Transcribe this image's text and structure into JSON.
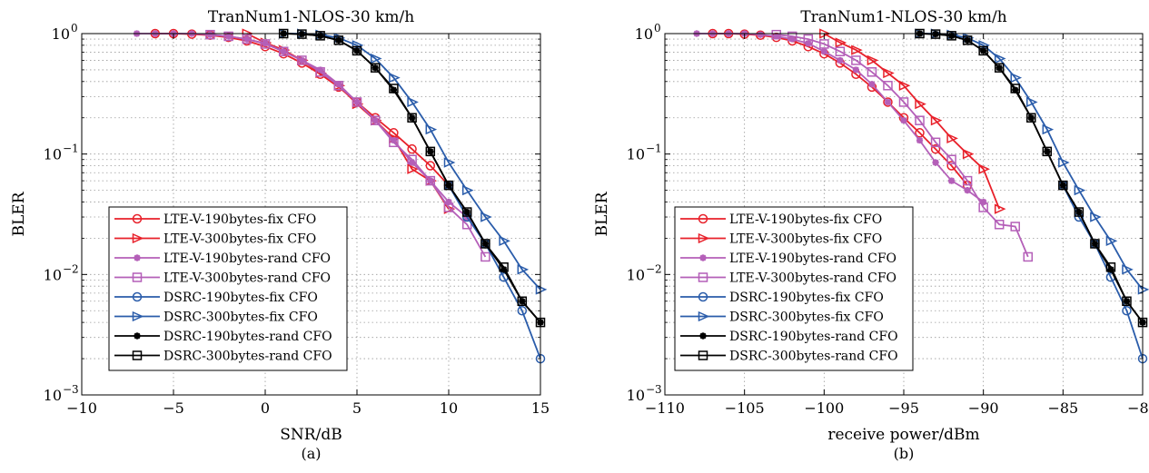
{
  "chart_data": [
    {
      "type": "line",
      "title": "TranNum1-NLOS-30 km/h",
      "caption": "(a)",
      "xlabel": "SNR/dB",
      "ylabel": "BLER",
      "yscale": "log",
      "xlim": [
        -10,
        15
      ],
      "ylim": [
        0.001,
        1
      ],
      "grid": true,
      "legend_position": "lower-left",
      "x_ticks": [
        {
          "value": -10,
          "label": "−10"
        },
        {
          "value": -5,
          "label": "−5"
        },
        {
          "value": 0,
          "label": "0"
        },
        {
          "value": 5,
          "label": "5"
        },
        {
          "value": 10,
          "label": "10"
        },
        {
          "value": 15,
          "label": "15"
        }
      ],
      "y_ticks": [
        {
          "value": 1,
          "base": "10",
          "exp": "0"
        },
        {
          "value": 0.1,
          "base": "10",
          "exp": "−1"
        },
        {
          "value": 0.01,
          "base": "10",
          "exp": "−2"
        },
        {
          "value": 0.001,
          "base": "10",
          "exp": "−3"
        }
      ],
      "series": [
        {
          "name": "LTE-V-190bytes-fix CFO",
          "color": "#e8202a",
          "marker": "circle",
          "x": [
            -6,
            -5,
            -4,
            -3,
            -2,
            -1,
            0,
            1,
            2,
            3,
            4,
            5,
            6,
            7,
            8,
            9,
            10
          ],
          "y": [
            1,
            1,
            0.99,
            0.97,
            0.93,
            0.87,
            0.78,
            0.68,
            0.57,
            0.46,
            0.36,
            0.27,
            0.2,
            0.15,
            0.11,
            0.08,
            0.055
          ]
        },
        {
          "name": "LTE-V-300bytes-fix CFO",
          "color": "#e8202a",
          "marker": "triangle-right",
          "x": [
            -1,
            0,
            1,
            2,
            3,
            4,
            5,
            6,
            7,
            8,
            9,
            10
          ],
          "y": [
            1,
            0.84,
            0.73,
            0.6,
            0.47,
            0.37,
            0.26,
            0.19,
            0.135,
            0.075,
            0.06,
            0.035
          ]
        },
        {
          "name": "LTE-V-190bytes-rand CFO",
          "color": "#b45fb8",
          "marker": "asterisk",
          "x": [
            -7,
            -6,
            -5,
            -4,
            -3,
            -2,
            -1,
            0,
            1,
            2,
            3,
            4,
            5,
            6,
            7,
            8,
            9,
            10,
            11
          ],
          "y": [
            1,
            1,
            1,
            1,
            0.98,
            0.95,
            0.9,
            0.83,
            0.71,
            0.6,
            0.5,
            0.38,
            0.27,
            0.19,
            0.13,
            0.085,
            0.06,
            0.04,
            0.03
          ]
        },
        {
          "name": "LTE-V-300bytes-rand CFO",
          "color": "#b45fb8",
          "marker": "square",
          "x": [
            -3,
            -2,
            -1,
            0,
            1,
            2,
            3,
            4,
            5,
            6,
            7,
            8,
            9,
            10,
            11,
            12
          ],
          "y": [
            0.98,
            0.95,
            0.9,
            0.82,
            0.71,
            0.6,
            0.48,
            0.37,
            0.27,
            0.19,
            0.125,
            0.09,
            0.06,
            0.036,
            0.026,
            0.014
          ]
        },
        {
          "name": "DSRC-190bytes-fix CFO",
          "color": "#2a5caa",
          "marker": "circle",
          "x": [
            10,
            11,
            12,
            13,
            14,
            15
          ],
          "y": [
            0.055,
            0.03,
            0.018,
            0.0095,
            0.005,
            0.002
          ]
        },
        {
          "name": "DSRC-300bytes-fix CFO",
          "color": "#2a5caa",
          "marker": "triangle-right",
          "x": [
            1,
            2,
            3,
            4,
            5,
            6,
            7,
            8,
            9,
            10,
            11,
            12,
            13,
            14,
            15
          ],
          "y": [
            1,
            1,
            0.98,
            0.92,
            0.8,
            0.62,
            0.43,
            0.27,
            0.16,
            0.085,
            0.05,
            0.03,
            0.019,
            0.011,
            0.0075
          ]
        },
        {
          "name": "DSRC-190bytes-rand CFO",
          "color": "#000000",
          "marker": "asterisk",
          "x": [
            1,
            2,
            3,
            4,
            5,
            6,
            7,
            8,
            9,
            10,
            11,
            12,
            13,
            14,
            15
          ],
          "y": [
            1,
            0.99,
            0.96,
            0.88,
            0.72,
            0.52,
            0.34,
            0.2,
            0.105,
            0.055,
            0.033,
            0.018,
            0.011,
            0.006,
            0.004
          ]
        },
        {
          "name": "DSRC-300bytes-rand CFO",
          "color": "#000000",
          "marker": "square",
          "x": [
            1,
            2,
            3,
            4,
            5,
            6,
            7,
            8,
            9,
            10,
            11,
            12,
            13,
            14,
            15
          ],
          "y": [
            1,
            0.99,
            0.96,
            0.88,
            0.72,
            0.52,
            0.35,
            0.2,
            0.105,
            0.055,
            0.033,
            0.018,
            0.0115,
            0.006,
            0.004
          ]
        }
      ]
    },
    {
      "type": "line",
      "title": "TranNum1-NLOS-30 km/h",
      "caption": "(b)",
      "xlabel": "receive power/dBm",
      "ylabel": "BLER",
      "yscale": "log",
      "xlim": [
        -110,
        -80
      ],
      "ylim": [
        0.001,
        1
      ],
      "grid": true,
      "legend_position": "lower-left",
      "x_ticks": [
        {
          "value": -110,
          "label": "−110"
        },
        {
          "value": -105,
          "label": "−105"
        },
        {
          "value": -100,
          "label": "−100"
        },
        {
          "value": -95,
          "label": "−95"
        },
        {
          "value": -90,
          "label": "−90"
        },
        {
          "value": -85,
          "label": "−85"
        },
        {
          "value": -80,
          "label": "−80"
        }
      ],
      "y_ticks": [
        {
          "value": 1,
          "base": "10",
          "exp": "0"
        },
        {
          "value": 0.1,
          "base": "10",
          "exp": "−1"
        },
        {
          "value": 0.01,
          "base": "10",
          "exp": "−2"
        },
        {
          "value": 0.001,
          "base": "10",
          "exp": "−3"
        }
      ],
      "series": [
        {
          "name": "LTE-V-190bytes-fix CFO",
          "color": "#e8202a",
          "marker": "circle",
          "x": [
            -107,
            -106,
            -105,
            -104,
            -103,
            -102,
            -101,
            -100,
            -99,
            -98,
            -97,
            -96,
            -95,
            -94,
            -93,
            -92,
            -91
          ],
          "y": [
            1,
            1,
            0.99,
            0.97,
            0.93,
            0.87,
            0.78,
            0.68,
            0.57,
            0.46,
            0.36,
            0.27,
            0.2,
            0.15,
            0.11,
            0.08,
            0.055
          ]
        },
        {
          "name": "LTE-V-300bytes-fix CFO",
          "color": "#e8202a",
          "marker": "triangle-right",
          "x": [
            -100,
            -99,
            -98,
            -97,
            -96,
            -95,
            -94,
            -93,
            -92,
            -91,
            -90,
            -89
          ],
          "y": [
            1,
            0.84,
            0.73,
            0.6,
            0.47,
            0.37,
            0.26,
            0.19,
            0.135,
            0.1,
            0.075,
            0.035
          ]
        },
        {
          "name": "LTE-V-190bytes-rand CFO",
          "color": "#b45fb8",
          "marker": "asterisk",
          "x": [
            -108,
            -107,
            -106,
            -105,
            -104,
            -103,
            -102,
            -101,
            -100,
            -99,
            -98,
            -97,
            -96,
            -95,
            -94,
            -93,
            -92,
            -91,
            -90
          ],
          "y": [
            1,
            1,
            1,
            1,
            0.98,
            0.95,
            0.9,
            0.83,
            0.71,
            0.6,
            0.5,
            0.38,
            0.27,
            0.19,
            0.13,
            0.085,
            0.06,
            0.05,
            0.04
          ]
        },
        {
          "name": "LTE-V-300bytes-rand CFO",
          "color": "#b45fb8",
          "marker": "square",
          "x": [
            -103,
            -102,
            -101,
            -100,
            -99,
            -98,
            -97,
            -96,
            -95,
            -94,
            -93,
            -92,
            -91,
            -90,
            -89,
            -88,
            -87.2
          ],
          "y": [
            0.98,
            0.95,
            0.9,
            0.82,
            0.71,
            0.6,
            0.48,
            0.37,
            0.27,
            0.19,
            0.125,
            0.09,
            0.06,
            0.036,
            0.026,
            0.025,
            0.014
          ]
        },
        {
          "name": "DSRC-190bytes-fix CFO",
          "color": "#2a5caa",
          "marker": "circle",
          "x": [
            -85,
            -84,
            -83,
            -82,
            -81,
            -80
          ],
          "y": [
            0.055,
            0.03,
            0.018,
            0.0095,
            0.005,
            0.002
          ]
        },
        {
          "name": "DSRC-300bytes-fix CFO",
          "color": "#2a5caa",
          "marker": "triangle-right",
          "x": [
            -94,
            -93,
            -92,
            -91,
            -90,
            -89,
            -88,
            -87,
            -86,
            -85,
            -84,
            -83,
            -82,
            -81,
            -80
          ],
          "y": [
            1,
            1,
            0.98,
            0.92,
            0.8,
            0.62,
            0.43,
            0.27,
            0.16,
            0.085,
            0.05,
            0.03,
            0.019,
            0.011,
            0.0075
          ]
        },
        {
          "name": "DSRC-190bytes-rand CFO",
          "color": "#000000",
          "marker": "asterisk",
          "x": [
            -94,
            -93,
            -92,
            -91,
            -90,
            -89,
            -88,
            -87,
            -86,
            -85,
            -84,
            -83,
            -82,
            -81,
            -80
          ],
          "y": [
            1,
            0.99,
            0.96,
            0.88,
            0.72,
            0.52,
            0.34,
            0.2,
            0.105,
            0.055,
            0.033,
            0.018,
            0.011,
            0.006,
            0.004
          ]
        },
        {
          "name": "DSRC-300bytes-rand CFO",
          "color": "#000000",
          "marker": "square",
          "x": [
            -94,
            -93,
            -92,
            -91,
            -90,
            -89,
            -88,
            -87,
            -86,
            -85,
            -84,
            -83,
            -82,
            -81,
            -80
          ],
          "y": [
            1,
            0.99,
            0.96,
            0.88,
            0.72,
            0.52,
            0.35,
            0.2,
            0.105,
            0.055,
            0.033,
            0.018,
            0.0115,
            0.006,
            0.004
          ]
        }
      ]
    }
  ]
}
